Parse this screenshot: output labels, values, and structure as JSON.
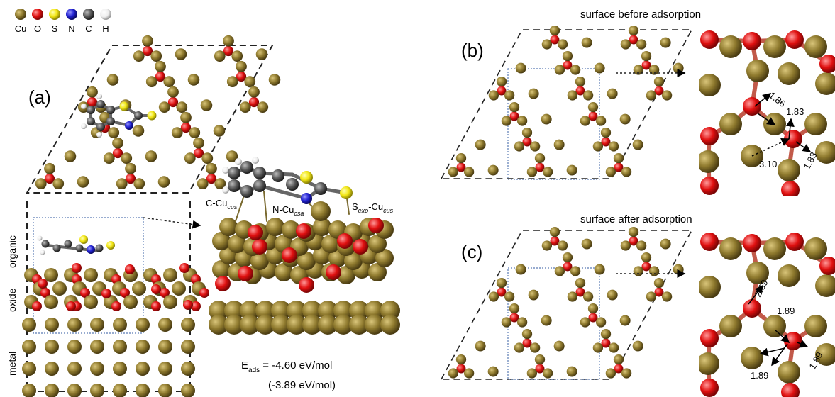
{
  "legend": {
    "items": [
      {
        "symbol": "Cu",
        "color": "#8f7a2e"
      },
      {
        "symbol": "O",
        "color": "#e01010"
      },
      {
        "symbol": "S",
        "color": "#f2e614"
      },
      {
        "symbol": "N",
        "color": "#2020d0"
      },
      {
        "symbol": "C",
        "color": "#5a5a5a"
      },
      {
        "symbol": "H",
        "color": "#f0f0f0"
      }
    ]
  },
  "panel_a": {
    "label": "(a)",
    "side_labels": [
      "organic",
      "oxide",
      "metal"
    ],
    "zoom_labels": {
      "c_cu": "C-Cu",
      "c_cu_sub": "cus",
      "n_cu": "N-Cu",
      "n_cu_sub": "csa",
      "s_prefix": "S",
      "s_sub": "exo",
      "s_cu": "-Cu",
      "s_cu_sub": "cus"
    },
    "energy": {
      "e": "E",
      "e_sub": "ads",
      "value": " = -4.60 eV/mol",
      "alt": "(-3.89 eV/mol)"
    }
  },
  "panel_b": {
    "label": "(b)",
    "title": "surface before adsorption",
    "distances": [
      "1.86",
      "1.83",
      "3.10",
      "1.83"
    ]
  },
  "panel_c": {
    "label": "(c)",
    "title": "surface after adsorption",
    "distances": [
      "2.69",
      "1.89",
      "1.89",
      "1.89"
    ]
  },
  "colors": {
    "cu": "#8f7a2e",
    "o": "#e01010",
    "s": "#f2e614",
    "n": "#2020d0",
    "c": "#5a5a5a",
    "h": "#f0f0f0"
  }
}
